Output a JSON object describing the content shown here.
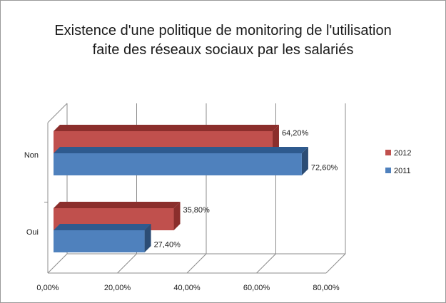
{
  "chart_data": {
    "type": "bar",
    "orientation": "horizontal",
    "style": "3d-clustered",
    "title_lines": [
      "Existence d'une politique de monitoring de l'utilisation",
      "faite des réseaux sociaux par les salariés"
    ],
    "categories": [
      "Non",
      "Oui"
    ],
    "series": [
      {
        "name": "2012",
        "color": "#c0504d",
        "top": "#8b2e2c",
        "side": "#8b2e2c",
        "values": [
          64.2,
          35.8
        ],
        "labels": [
          "64,20%",
          "35,80%"
        ]
      },
      {
        "name": "2011",
        "color": "#4f81bd",
        "top": "#2e5a8e",
        "side": "#2c4d75",
        "values": [
          72.6,
          27.4
        ],
        "labels": [
          "72,60%",
          "27,40%"
        ]
      }
    ],
    "xlim": [
      0,
      80
    ],
    "x_ticks": [
      0,
      20,
      40,
      60,
      80
    ],
    "x_tick_labels": [
      "0,00%",
      "20,00%",
      "40,00%",
      "60,00%",
      "80,00%"
    ],
    "grid": true,
    "legend_position": "right"
  }
}
